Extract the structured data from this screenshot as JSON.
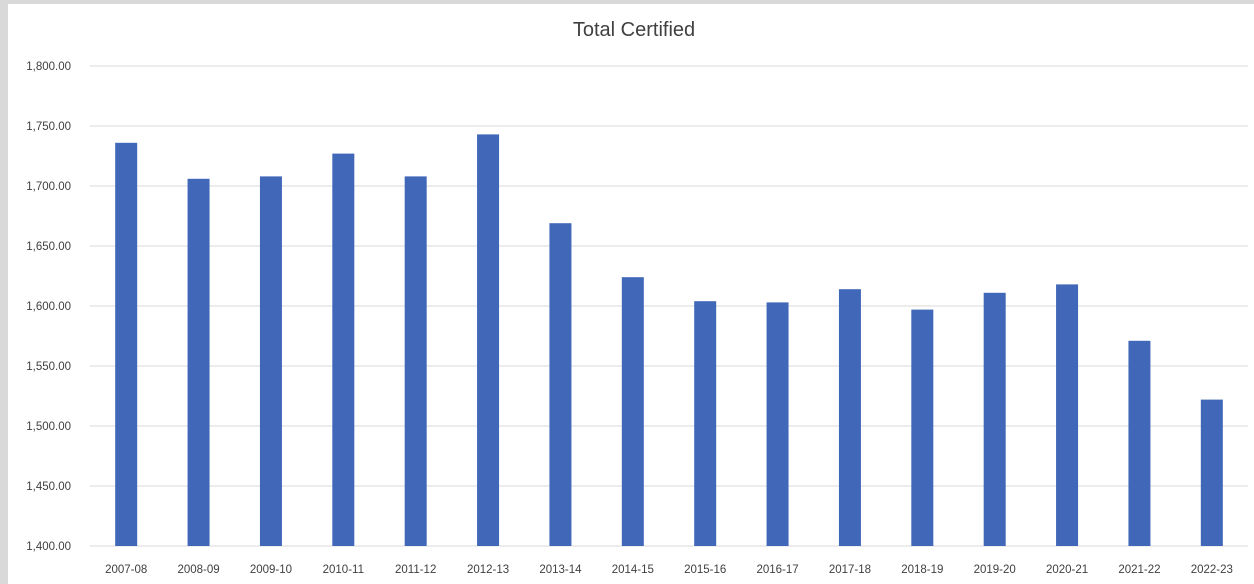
{
  "chart_data": {
    "type": "bar",
    "title": "Total Certified",
    "xlabel": "",
    "ylabel": "",
    "ylim": [
      1400,
      1800
    ],
    "y_ticks": [
      "1,400.00",
      "1,450.00",
      "1,500.00",
      "1,550.00",
      "1,600.00",
      "1,650.00",
      "1,700.00",
      "1,750.00",
      "1,800.00"
    ],
    "y_tick_values": [
      1400,
      1450,
      1500,
      1550,
      1600,
      1650,
      1700,
      1750,
      1800
    ],
    "categories": [
      "2007-08",
      "2008-09",
      "2009-10",
      "2010-11",
      "2011-12",
      "2012-13",
      "2013-14",
      "2014-15",
      "2015-16",
      "2016-17",
      "2017-18",
      "2018-19",
      "2019-20",
      "2020-21",
      "2021-22",
      "2022-23"
    ],
    "values": [
      1736,
      1706,
      1708,
      1727,
      1708,
      1743,
      1669,
      1624,
      1604,
      1603,
      1614,
      1597,
      1611,
      1618,
      1571,
      1522
    ],
    "grid": true,
    "legend": "none",
    "colors": {
      "bar": "#4067b8",
      "grid": "#d9d9d9",
      "text": "#404040",
      "background": "#ffffff"
    }
  }
}
